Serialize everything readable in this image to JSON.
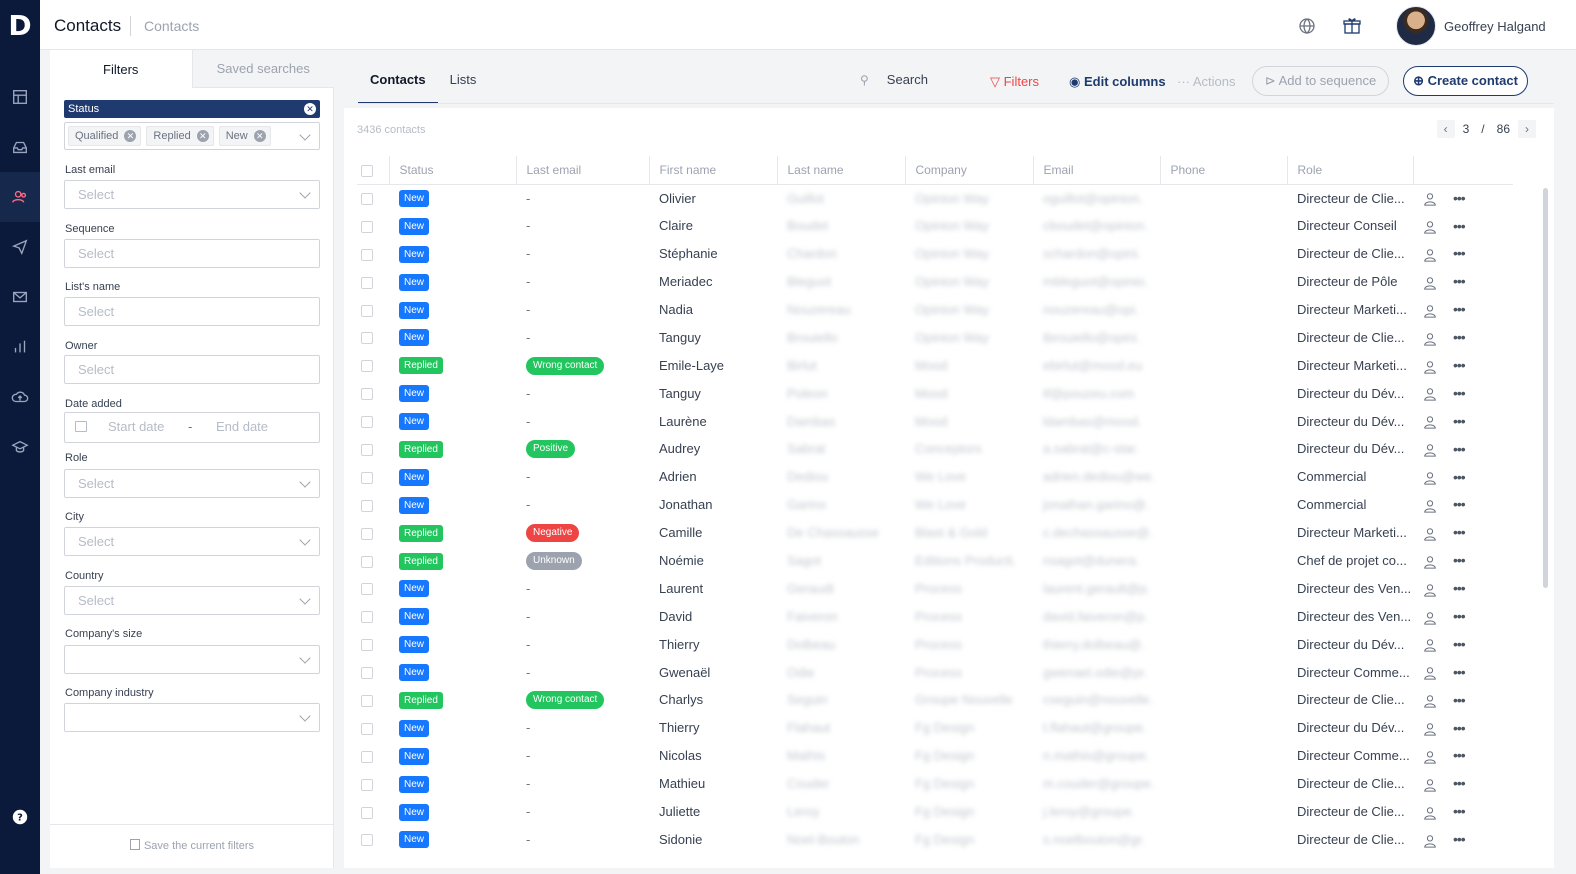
{
  "app": {
    "logo": "D",
    "title": "Contacts",
    "breadcrumb": "Contacts"
  },
  "user": {
    "name": "Geoffrey Halgand"
  },
  "filters": {
    "tabs": [
      "Filters",
      "Saved searches"
    ],
    "status_label": "Status",
    "status_tags": [
      "Qualified",
      "Replied",
      "New"
    ],
    "fields": [
      {
        "label": "Last email",
        "placeholder": "Select"
      },
      {
        "label": "Sequence",
        "placeholder": "Select"
      },
      {
        "label": "List's name",
        "placeholder": "Select"
      },
      {
        "label": "Owner",
        "placeholder": "Select"
      }
    ],
    "date_label": "Date added",
    "date_start": "Start date",
    "date_sep": "-",
    "date_end": "End date",
    "fields2": [
      {
        "label": "Role",
        "placeholder": "Select"
      },
      {
        "label": "City",
        "placeholder": "Select"
      },
      {
        "label": "Country",
        "placeholder": "Select"
      },
      {
        "label": "Company's size",
        "placeholder": ""
      },
      {
        "label": "Company industry",
        "placeholder": ""
      }
    ],
    "save_label": "Save the current filters"
  },
  "main": {
    "tabs": [
      "Contacts",
      "Lists"
    ],
    "search_label": "Search",
    "filters_btn": "Filters",
    "edit_columns_btn": "Edit columns",
    "actions_btn": "Actions",
    "add_sequence_btn": "Add to sequence",
    "create_btn": "Create contact",
    "count": "3436 contacts",
    "page": "3",
    "page_sep": "/",
    "total_pages": "86"
  },
  "colors": {
    "new": "#1677ff",
    "replied": "#22c55e",
    "wrong": "#22c55e",
    "positive": "#22c55e",
    "negative": "#ef4444",
    "unknown": "#9ca3af",
    "accent": "#1e3a6e",
    "filters": "#ef4444"
  },
  "table": {
    "columns": [
      "Status",
      "Last email",
      "First name",
      "Last name",
      "Company",
      "Email",
      "Phone",
      "Role"
    ],
    "rows": [
      {
        "status": "New",
        "last_email": "-",
        "first": "Olivier",
        "last": "Guillot",
        "company": "Opinion Way",
        "email": "oguillot@opinion.",
        "phone": "",
        "role": "Directeur de Clie..."
      },
      {
        "status": "New",
        "last_email": "-",
        "first": "Claire",
        "last": "Boudet",
        "company": "Opinion Way",
        "email": "cboudet@opinion.",
        "phone": "",
        "role": "Directeur Conseil"
      },
      {
        "status": "New",
        "last_email": "-",
        "first": "Stéphanie",
        "last": "Chardon",
        "company": "Opinion Way",
        "email": "schardon@opini.",
        "phone": "",
        "role": "Directeur de Clie..."
      },
      {
        "status": "New",
        "last_email": "-",
        "first": "Meriadec",
        "last": "Bleguot",
        "company": "Opinion Way",
        "email": "mbleguot@opinio.",
        "phone": "",
        "role": "Directeur de Pôle"
      },
      {
        "status": "New",
        "last_email": "-",
        "first": "Nadia",
        "last": "Nouzereau",
        "company": "Opinion Way",
        "email": "nouzereau@opi.",
        "phone": "",
        "role": "Directeur Marketi..."
      },
      {
        "status": "New",
        "last_email": "-",
        "first": "Tanguy",
        "last": "Brouiello",
        "company": "Opinion Way",
        "email": "tbrouiello@opini.",
        "phone": "",
        "role": "Directeur de Clie..."
      },
      {
        "status": "Replied",
        "last_email": "Wrong contact",
        "first": "Emile-Laye",
        "last": "Birlut",
        "company": "Mood",
        "email": "ebirlut@mood.eu",
        "phone": "",
        "role": "Directeur Marketi..."
      },
      {
        "status": "New",
        "last_email": "-",
        "first": "Tanguy",
        "last": "Poleon",
        "company": "Mood",
        "email": "tf@pouzeu.com",
        "phone": "",
        "role": "Directeur du Dév..."
      },
      {
        "status": "New",
        "last_email": "-",
        "first": "Laurène",
        "last": "Dambas",
        "company": "Mood",
        "email": "ldambas@mood.",
        "phone": "",
        "role": "Directeur du Dév..."
      },
      {
        "status": "Replied",
        "last_email": "Positive",
        "first": "Audrey",
        "last": "Sabrat",
        "company": "Conceptors",
        "email": "a.sabrat@c-star.",
        "phone": "",
        "role": "Directeur du Dév..."
      },
      {
        "status": "New",
        "last_email": "-",
        "first": "Adrien",
        "last": "Dediou",
        "company": "We Love",
        "email": "adrien.dediou@we.",
        "phone": "",
        "role": "Commercial"
      },
      {
        "status": "New",
        "last_email": "-",
        "first": "Jonathan",
        "last": "Garino",
        "company": "We Love",
        "email": "jonathan.garino@.",
        "phone": "",
        "role": "Commercial"
      },
      {
        "status": "Replied",
        "last_email": "Negative",
        "first": "Camille",
        "last": "De Chassausse",
        "company": "Blast & Gold",
        "email": "c.dechassausse@.",
        "phone": "",
        "role": "Directeur Marketi..."
      },
      {
        "status": "Replied",
        "last_email": "Unknown",
        "first": "Noémie",
        "last": "Sagot",
        "company": "Editions Producti.",
        "email": "nsagot@dunera.",
        "phone": "",
        "role": "Chef de projet co..."
      },
      {
        "status": "New",
        "last_email": "-",
        "first": "Laurent",
        "last": "Geraudt",
        "company": "Process",
        "email": "laurent.gerault@p.",
        "phone": "",
        "role": "Directeur des Ven..."
      },
      {
        "status": "New",
        "last_email": "-",
        "first": "David",
        "last": "Faiveron",
        "company": "Process",
        "email": "david.faiveron@p.",
        "phone": "",
        "role": "Directeur des Ven..."
      },
      {
        "status": "New",
        "last_email": "-",
        "first": "Thierry",
        "last": "Dolbeau",
        "company": "Process",
        "email": "thierry.dolbeau@.",
        "phone": "",
        "role": "Directeur du Dév..."
      },
      {
        "status": "New",
        "last_email": "-",
        "first": "Gwenaël",
        "last": "Odie",
        "company": "Process",
        "email": "gwenael.odie@pr.",
        "phone": "",
        "role": "Directeur Comme..."
      },
      {
        "status": "Replied",
        "last_email": "Wrong contact",
        "first": "Charlys",
        "last": "Seguin",
        "company": "Groupe Nouvelle",
        "email": "cseguin@nouvelle.",
        "phone": "",
        "role": "Directeur de Clie..."
      },
      {
        "status": "New",
        "last_email": "-",
        "first": "Thierry",
        "last": "Flahaut",
        "company": "Fg Design",
        "email": "t.flahaut@groupe.",
        "phone": "",
        "role": "Directeur du Dév..."
      },
      {
        "status": "New",
        "last_email": "-",
        "first": "Nicolas",
        "last": "Mathis",
        "company": "Fg Design",
        "email": "n.mathis@groupe.",
        "phone": "",
        "role": "Directeur Comme..."
      },
      {
        "status": "New",
        "last_email": "-",
        "first": "Mathieu",
        "last": "Couder",
        "company": "Fg Design",
        "email": "m.couder@groupe.",
        "phone": "",
        "role": "Directeur de Clie..."
      },
      {
        "status": "New",
        "last_email": "-",
        "first": "Juliette",
        "last": "Leroy",
        "company": "Fg Design",
        "email": "j.leroy@groupe.",
        "phone": "",
        "role": "Directeur de Clie..."
      },
      {
        "status": "New",
        "last_email": "-",
        "first": "Sidonie",
        "last": "Noel-Bouton",
        "company": "Fg Design",
        "email": "s.noelbouton@gr.",
        "phone": "",
        "role": "Directeur de Clie..."
      }
    ]
  }
}
